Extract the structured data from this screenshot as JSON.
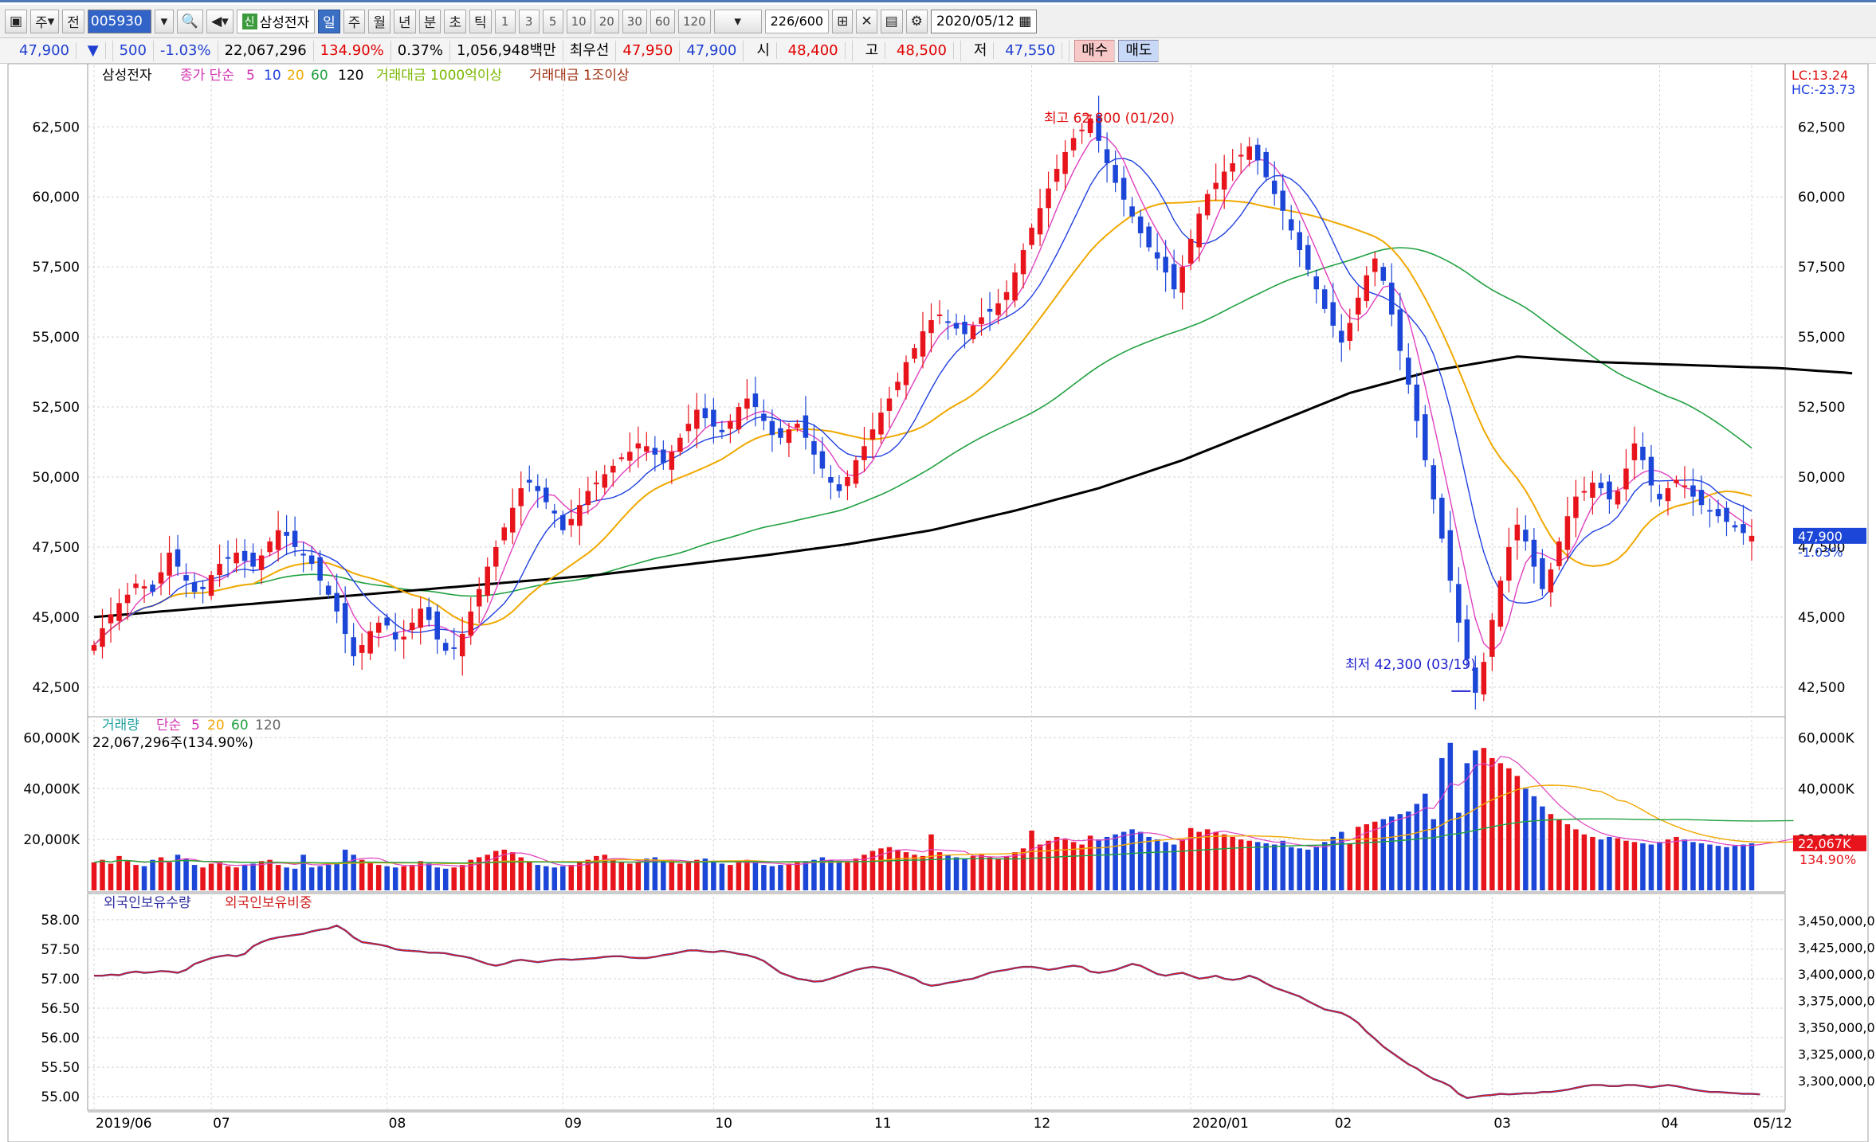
{
  "toolbar": {
    "mode_label": "주",
    "prev_label": "전",
    "stock_code": "005930",
    "new_badge": "신",
    "stock_name": "삼성전자",
    "period_tabs": [
      "일",
      "주",
      "월",
      "년",
      "분",
      "초",
      "틱"
    ],
    "selected_period": "일",
    "interval_buttons": [
      "1",
      "3",
      "5",
      "10",
      "20",
      "30",
      "60",
      "120"
    ],
    "count": "226",
    "count_total": "/600",
    "date": "2020/05/12"
  },
  "quote": {
    "price": "47,900",
    "down_arrow": "▼",
    "change": "500",
    "change_pct": "-1.03%",
    "volume": "22,067,296",
    "volume_ratio": "134.90%",
    "turnover_pct": "0.37%",
    "amount": "1,056,948백만",
    "best_ask_label": "최우선",
    "best_ask": "47,950",
    "best_bid": "47,900",
    "open_label": "시",
    "open": "48,400",
    "high_label": "고",
    "high": "48,500",
    "low_label": "저",
    "low": "47,550",
    "buy_label": "매수",
    "sell_label": "매도"
  },
  "colors": {
    "up": "#e8141c",
    "down": "#1c46d8",
    "ma5": "#e040c0",
    "ma10": "#2040e0",
    "ma20": "#f0a800",
    "ma60": "#20a040",
    "ma120": "#000000",
    "foreign": "#e02020"
  },
  "chart_data": [
    {
      "type": "candlestick",
      "legend": [
        "삼성전자",
        "종가 단순",
        "5",
        "10",
        "20",
        "60",
        "120",
        "거래대금 1000억이상",
        "거래대금 1조이상"
      ],
      "ylim": [
        41500,
        63900
      ],
      "yticks": [
        "62,500",
        "60,000",
        "57,500",
        "55,000",
        "52,500",
        "50,000",
        "47,500",
        "45,000",
        "42,500"
      ],
      "ytick_values": [
        62500,
        60000,
        57500,
        55000,
        52500,
        50000,
        47500,
        45000,
        42500
      ],
      "right_labels": {
        "lc": "LC:13.24",
        "hc": "HC:-23.73",
        "last_price": "47,900",
        "last_change": "-1.03%"
      },
      "annotations": {
        "high": "최고 62,800 (01/20)",
        "low": "최저 42,300 (03/19)"
      },
      "close": [
        44000,
        44600,
        45100,
        45500,
        45800,
        46200,
        46100,
        45900,
        46600,
        47300,
        46800,
        46300,
        45900,
        46000,
        46500,
        46900,
        47100,
        47300,
        47000,
        46800,
        47200,
        47700,
        48100,
        47900,
        47500,
        47200,
        46900,
        46300,
        45800,
        45200,
        44400,
        43600,
        44000,
        44500,
        44800,
        44700,
        44200,
        44300,
        44800,
        45300,
        44900,
        44200,
        43800,
        43900,
        44400,
        45200,
        46000,
        46800,
        47500,
        48200,
        48900,
        49600,
        49800,
        49500,
        49100,
        48700,
        48100,
        48500,
        49000,
        49500,
        49800,
        50100,
        50400,
        50700,
        50900,
        51200,
        51100,
        50800,
        50500,
        50900,
        51400,
        51900,
        52400,
        52100,
        51800,
        51600,
        52000,
        52500,
        52800,
        52500,
        52000,
        51500,
        51400,
        51700,
        51900,
        51400,
        50800,
        50300,
        49800,
        49500,
        50000,
        50600,
        51100,
        51700,
        52300,
        52800,
        53400,
        54100,
        54600,
        55200,
        55600,
        55800,
        55500,
        55300,
        55100,
        55400,
        55700,
        55900,
        56200,
        56600,
        57300,
        58100,
        58900,
        59600,
        60300,
        61000,
        61600,
        62100,
        62400,
        62800,
        62000,
        61200,
        60500,
        59900,
        59300,
        58700,
        58200,
        57800,
        57300,
        56700,
        57500,
        58500,
        59400,
        60100,
        60500,
        60900,
        61200,
        61500,
        61800,
        61300,
        60700,
        60100,
        59500,
        58800,
        58100,
        57400,
        56700,
        56000,
        55400,
        54800,
        55500,
        56400,
        57200,
        57800,
        57000,
        55800,
        54500,
        53300,
        52000,
        50600,
        49200,
        47800,
        46300,
        44800,
        43500,
        42300,
        43400,
        44900,
        46300,
        47500,
        48300,
        47700,
        46800,
        46000,
        46700,
        47700,
        48600,
        49300,
        49500,
        49800,
        49600,
        49200,
        49500,
        50300,
        51200,
        50600,
        49700,
        49200,
        49600,
        49900,
        49700,
        49300,
        49000,
        48800,
        48600,
        48400,
        48200,
        48000,
        47900
      ],
      "ma120": [
        45000,
        45025,
        45050,
        45075,
        45100,
        45125,
        45150,
        45175,
        45200,
        45225,
        45250,
        45275,
        45300,
        45325,
        45350,
        45375,
        45400,
        45425,
        45450,
        45475,
        45500,
        45525,
        45550,
        45575,
        45600,
        45625,
        45650,
        45675,
        45700,
        45725,
        45750,
        45775,
        45800,
        45825,
        45850,
        45875,
        45900,
        45925,
        45950,
        45975,
        46000,
        46025,
        46050,
        46075,
        46100,
        46125,
        46150,
        46175,
        46200,
        46225,
        46250,
        46275,
        46300,
        46325,
        46350,
        46375,
        46400,
        46425,
        46450,
        46475,
        46500,
        46535,
        46570,
        46605,
        46640,
        46675,
        46710,
        46745,
        46780,
        46815,
        46850,
        46885,
        46920,
        46955,
        46990,
        47025,
        47060,
        47095,
        47130,
        47165,
        47200,
        47240,
        47280,
        47320,
        47360,
        47400,
        47440,
        47480,
        47520,
        47560,
        47600,
        47650,
        47700,
        47750,
        47800,
        47850,
        47900,
        47950,
        48000,
        48050,
        48100,
        48170,
        48240,
        48310,
        48380,
        48450,
        48520,
        48590,
        48660,
        48730,
        48800,
        48880,
        48960,
        49040,
        49120,
        49200,
        49280,
        49360,
        49440,
        49520,
        49600,
        49700,
        49800,
        49900,
        50000,
        50100,
        50200,
        50300,
        50400,
        50500,
        50600,
        50720,
        50840,
        50960,
        51080,
        51200,
        51320,
        51440,
        51560,
        51680,
        51800,
        51920,
        52040,
        52160,
        52280,
        52400,
        52520,
        52640,
        52760,
        52880,
        53000,
        53080,
        53160,
        53240,
        53320,
        53400,
        53480,
        53560,
        53640,
        53720,
        53800,
        53850,
        53900,
        53950,
        54000,
        54050,
        54100,
        54150,
        54200,
        54250,
        54300,
        54280,
        54260,
        54240,
        54220,
        54200,
        54180,
        54160,
        54140,
        54120,
        54100,
        54090,
        54080,
        54070,
        54060,
        54050,
        54040,
        54030,
        54020,
        54010,
        54000,
        53990,
        53980,
        53970,
        53960,
        53950,
        53940,
        53930,
        53920,
        53910,
        53900,
        53890,
        53870,
        53850,
        53830,
        53810,
        53790,
        53770,
        53750,
        53730,
        53700
      ]
    },
    {
      "type": "bar",
      "title": "거래량",
      "legend": [
        "거래량",
        "단순",
        "5",
        "20",
        "60",
        "120"
      ],
      "summary": "22,067,296주(134.90%)",
      "ylim": [
        0,
        62000
      ],
      "yticks": [
        "60,000K",
        "40,000K",
        "20,000K"
      ],
      "ytick_values": [
        60000,
        40000,
        20000
      ],
      "right_labels": {
        "last_volume": "22,067K",
        "last_ratio": "134.90%"
      },
      "values_k": [
        11000,
        12000,
        10500,
        13500,
        11500,
        10000,
        9500,
        12000,
        13000,
        11000,
        14000,
        12500,
        10000,
        9000,
        10500,
        11000,
        9500,
        9000,
        10000,
        10500,
        11500,
        12000,
        10000,
        9000,
        8500,
        8500,
        9000,
        9500,
        10000,
        10500,
        12500,
        14000,
        12000,
        11000,
        10000,
        9500,
        9000,
        9500,
        10000,
        11500,
        10500,
        9000,
        8500,
        9000,
        10000,
        12000,
        13000,
        14000,
        15000,
        16000,
        15000,
        13000,
        11000,
        10000,
        9500,
        9000,
        9500,
        10000,
        11000,
        12000,
        13500,
        14000,
        12000,
        11000,
        10500,
        11000,
        12500,
        13000,
        12000,
        11000,
        10500,
        11000,
        12000,
        12500,
        11500,
        10500,
        10000,
        11000,
        12000,
        11000,
        10000,
        9500,
        10000,
        10500,
        11000,
        11500,
        12000,
        13000,
        12000,
        11000,
        11500,
        12500,
        14000,
        15500,
        16500,
        17000,
        16000,
        15000,
        14000,
        13500,
        14500,
        15000,
        14000,
        13000,
        12500,
        13500,
        14000,
        13000,
        12500,
        13500,
        15000,
        16500,
        17000,
        18000,
        19500,
        21000,
        20000,
        19000,
        18000,
        19000,
        20000,
        21000,
        22000,
        23000,
        24000,
        23000,
        21000,
        20000,
        19000,
        18000,
        20000,
        22000,
        23000,
        24000,
        23000,
        22000,
        21000,
        20000,
        19500,
        19000,
        18500,
        18000,
        17500,
        17000,
        16500,
        16000,
        17000,
        19000,
        21000,
        23000,
        24000,
        25000,
        26000,
        27000,
        28000,
        29000,
        30000,
        31000,
        34000,
        38000,
        44000,
        52000,
        58000,
        54000,
        50000,
        55000,
        56000,
        52000,
        50000,
        48000,
        45000,
        40000,
        37000,
        33000,
        30000,
        28000,
        26000,
        24000,
        22000,
        21000,
        20000,
        21000,
        20500,
        19500,
        19000,
        18500,
        18000,
        19000,
        20000,
        21000,
        20000,
        19000,
        18500,
        18000,
        17500,
        17000,
        17500,
        18000,
        18500,
        19000,
        19500,
        20000,
        21000,
        22067
      ],
      "spikes_k": {
        "25": 14000,
        "30": 16000,
        "48": 15500,
        "100": 22000,
        "112": 23500,
        "119": 21500,
        "131": 24500,
        "142": 19500,
        "150": 18500,
        "160": 28000,
        "163": 30500
      }
    },
    {
      "type": "line",
      "title": "외국인보유수량",
      "legend": [
        "외국인보유수량",
        "외국인보유비중"
      ],
      "left_yticks": [
        "58.00",
        "57.50",
        "57.00",
        "56.50",
        "56.00",
        "55.50",
        "55.00"
      ],
      "left_ytick_values": [
        58.0,
        57.5,
        57.0,
        56.5,
        56.0,
        55.5,
        55.0
      ],
      "right_yticks": [
        "3,450,000,0",
        "3,425,000,0",
        "3,400,000,0",
        "3,375,000,0",
        "3,350,000,0",
        "3,325,000,0",
        "3,300,000,0"
      ],
      "left_ylim": [
        54.8,
        58.2
      ],
      "ratio_pct": [
        57.05,
        57.05,
        57.07,
        57.06,
        57.1,
        57.12,
        57.1,
        57.11,
        57.13,
        57.12,
        57.1,
        57.15,
        57.25,
        57.3,
        57.35,
        57.38,
        57.4,
        57.38,
        57.42,
        57.55,
        57.62,
        57.67,
        57.7,
        57.72,
        57.74,
        57.76,
        57.8,
        57.83,
        57.85,
        57.9,
        57.82,
        57.7,
        57.62,
        57.6,
        57.58,
        57.55,
        57.5,
        57.48,
        57.47,
        57.46,
        57.44,
        57.44,
        57.43,
        57.4,
        57.38,
        57.35,
        57.3,
        57.25,
        57.22,
        57.25,
        57.3,
        57.32,
        57.3,
        57.28,
        57.3,
        57.32,
        57.33,
        57.32,
        57.33,
        57.34,
        57.35,
        57.37,
        57.38,
        57.38,
        57.36,
        57.35,
        57.35,
        57.37,
        57.4,
        57.42,
        57.45,
        57.48,
        57.48,
        57.46,
        57.45,
        57.47,
        57.45,
        57.42,
        57.4,
        57.36,
        57.3,
        57.2,
        57.1,
        57.05,
        57.0,
        56.98,
        56.95,
        56.96,
        57.0,
        57.05,
        57.1,
        57.15,
        57.18,
        57.2,
        57.18,
        57.15,
        57.1,
        57.05,
        57.0,
        56.92,
        56.88,
        56.9,
        56.93,
        56.95,
        56.98,
        57.0,
        57.05,
        57.1,
        57.13,
        57.15,
        57.18,
        57.2,
        57.2,
        57.18,
        57.15,
        57.17,
        57.2,
        57.22,
        57.2,
        57.12,
        57.1,
        57.12,
        57.15,
        57.2,
        57.25,
        57.22,
        57.15,
        57.08,
        57.05,
        57.08,
        57.1,
        57.05,
        57.0,
        57.02,
        57.05,
        57.0,
        56.98,
        57.0,
        57.05,
        57.0,
        56.92,
        56.85,
        56.8,
        56.75,
        56.7,
        56.62,
        56.55,
        56.48,
        56.45,
        56.42,
        56.35,
        56.25,
        56.1,
        55.98,
        55.85,
        55.75,
        55.65,
        55.55,
        55.48,
        55.38,
        55.3,
        55.25,
        55.18,
        55.05,
        54.98,
        55.0,
        55.02,
        55.03,
        55.05,
        55.04,
        55.05,
        55.06,
        55.06,
        55.08,
        55.08,
        55.1,
        55.12,
        55.15,
        55.18,
        55.2,
        55.2,
        55.18,
        55.18,
        55.2,
        55.2,
        55.18,
        55.16,
        55.18,
        55.2,
        55.18,
        55.15,
        55.12,
        55.1,
        55.08,
        55.08,
        55.07,
        55.06,
        55.05,
        55.05,
        55.04
      ]
    }
  ],
  "x_axis": {
    "labels": [
      "2019/06",
      "07",
      "08",
      "09",
      "10",
      "11",
      "12",
      "2020/01",
      "02",
      "03",
      "04",
      "05",
      "05/12"
    ],
    "label_index": [
      0,
      14,
      35,
      56,
      74,
      93,
      112,
      131,
      148,
      167,
      187,
      205,
      226
    ]
  }
}
